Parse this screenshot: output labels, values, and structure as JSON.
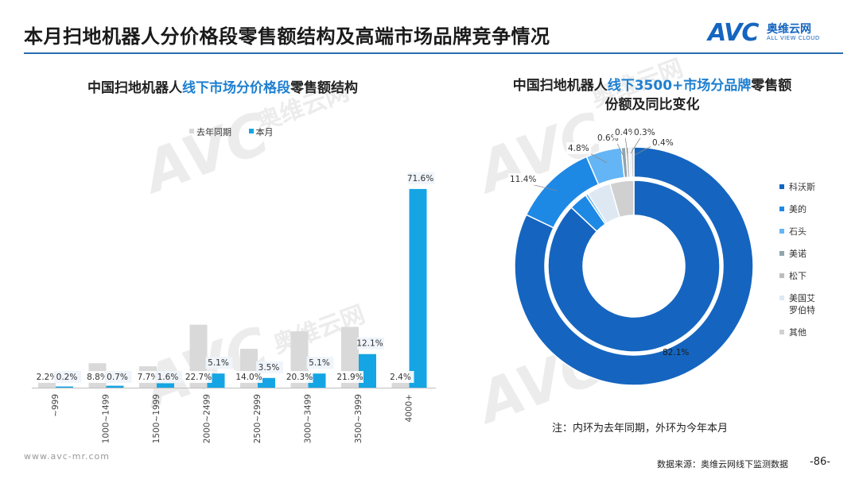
{
  "header": {
    "title": "本月扫地机器人分价格段零售额结构及高端市场品牌竞争情况",
    "logo_text": "AVC",
    "logo_cn": "奥维云网",
    "logo_en": "ALL VIEW CLOUD"
  },
  "watermark": {
    "text": "AVC",
    "cn": "奥维云网",
    "en": "ALL VIEW CLOUD"
  },
  "left_chart_title": {
    "part1": "中国扫地机器人",
    "highlight": "线下市场分价格段",
    "part2": "零售额结构"
  },
  "right_chart_title": {
    "part1": "中国扫地机器人",
    "highlight": "线下3500+市场分品牌",
    "part2": "零售额",
    "line2": "份额及同比变化"
  },
  "colors": {
    "last_year": "#d9d9d9",
    "this_month": "#15a5e4",
    "accent": "#1e7fd0"
  },
  "chart_data": [
    {
      "type": "bar",
      "title": "中国扫地机器人线下市场分价格段零售额结构",
      "categories": [
        "~999",
        "1000~1499",
        "1500~1999",
        "2000~2499",
        "2500~2999",
        "3000~3499",
        "3500~3999",
        "4000+"
      ],
      "series": [
        {
          "name": "去年同期",
          "values": [
            2.2,
            8.8,
            7.7,
            22.7,
            14.0,
            20.3,
            21.9,
            2.4
          ],
          "labels": [
            "2.2%",
            "8.8%",
            "7.7%",
            "22.7%",
            "14.0%",
            "20.3%",
            "21.9%",
            "2.4%"
          ]
        },
        {
          "name": "本月",
          "values": [
            0.2,
            0.7,
            1.6,
            5.1,
            3.5,
            5.1,
            12.1,
            71.6
          ],
          "labels": [
            "0.2%",
            "0.7%",
            "1.6%",
            "5.1%",
            "3.5%",
            "5.1%",
            "12.1%",
            "71.6%"
          ]
        }
      ],
      "ylim": [
        0,
        75
      ],
      "legend": "top"
    },
    {
      "type": "pie",
      "title": "中国扫地机器人线下3500+市场分品牌零售额份额及同比变化",
      "subtype": "nested-donut",
      "brands": [
        "科沃斯",
        "美的",
        "石头",
        "美诺",
        "松下",
        "美国艾罗伯特",
        "其他"
      ],
      "legend_labels": [
        "科沃斯",
        "美的",
        "石头",
        "美诺",
        "松下",
        "美国艾\n罗伯特",
        "其他"
      ],
      "brand_colors": [
        "#1565c0",
        "#1e88e5",
        "#64b5f6",
        "#90a4ae",
        "#bdbdbd",
        "#dde8f3",
        "#d0d0d0"
      ],
      "outer_ring_this_month": [
        82.1,
        11.4,
        4.8,
        0.6,
        0.4,
        0.3,
        0.4
      ],
      "outer_labels": [
        "82.1%",
        "11.4%",
        "4.8%",
        "0.6%",
        "0.4%",
        "0.3%",
        "0.4%"
      ],
      "inner_ring_last_year": [
        87.0,
        3.5,
        0.5,
        0.0,
        0.0,
        4.5,
        4.5
      ],
      "legend": "right"
    }
  ],
  "note": "注：内环为去年同期，外环为今年本月",
  "footer": {
    "website": "www.avc-mr.com",
    "source": "数据来源：奥维云网线下监测数据",
    "page": "-86-"
  }
}
